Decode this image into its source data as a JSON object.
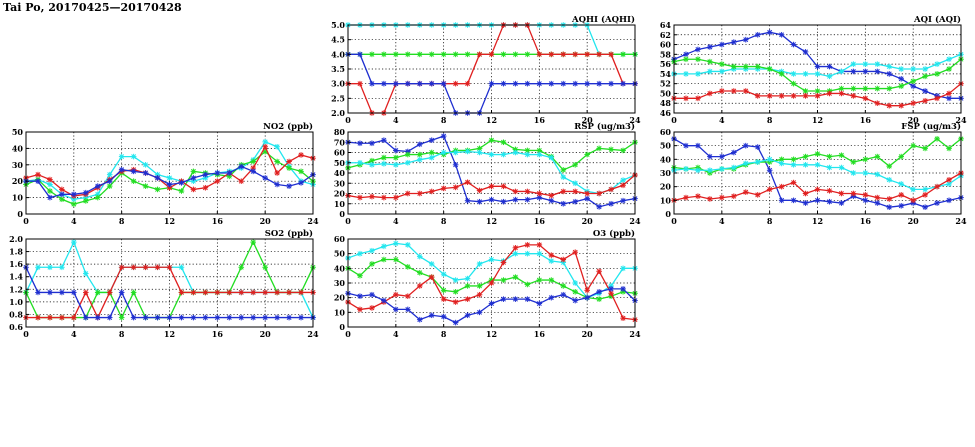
{
  "page": {
    "title": "Tai Po, 20170425—20170428"
  },
  "palette": {
    "blue": "#1f2fd0",
    "green": "#22dd22",
    "red": "#e02020",
    "cyan": "#22e6ee"
  },
  "chart_data": [
    {
      "id": "aqhi",
      "type": "line",
      "title": "AQHI (AQHI)",
      "x": [
        0,
        1,
        2,
        3,
        4,
        5,
        6,
        7,
        8,
        9,
        10,
        11,
        12,
        13,
        14,
        15,
        16,
        17,
        18,
        19,
        20,
        21,
        22,
        23,
        24
      ],
      "xticks": [
        0,
        4,
        8,
        12,
        16,
        20,
        24
      ],
      "ylim": [
        2.0,
        5.0
      ],
      "yticks": [
        "2.0",
        "2.5",
        "3.0",
        "3.5",
        "4.0",
        "4.5",
        "5.0"
      ],
      "series": [
        {
          "color": "cyan",
          "values": [
            5,
            5,
            5,
            5,
            5,
            5,
            5,
            5,
            5,
            5,
            5,
            5,
            5,
            5,
            5,
            5,
            5,
            5,
            5,
            5,
            5,
            4,
            4,
            4,
            4
          ]
        },
        {
          "color": "green",
          "values": [
            4,
            4,
            4,
            4,
            4,
            4,
            4,
            4,
            4,
            4,
            4,
            4,
            4,
            4,
            4,
            4,
            4,
            4,
            4,
            4,
            4,
            4,
            4,
            4,
            4
          ]
        },
        {
          "color": "red",
          "values": [
            3,
            3,
            2,
            2,
            3,
            3,
            3,
            3,
            3,
            3,
            3,
            4,
            4,
            5,
            5,
            5,
            4,
            4,
            4,
            4,
            4,
            4,
            4,
            3,
            3
          ]
        },
        {
          "color": "blue",
          "values": [
            4,
            4,
            3,
            3,
            3,
            3,
            3,
            3,
            3,
            2,
            2,
            2,
            3,
            3,
            3,
            3,
            3,
            3,
            3,
            3,
            3,
            3,
            3,
            3,
            3
          ]
        }
      ]
    },
    {
      "id": "aqi",
      "type": "line",
      "title": "AQI (AQI)",
      "x": [
        0,
        1,
        2,
        3,
        4,
        5,
        6,
        7,
        8,
        9,
        10,
        11,
        12,
        13,
        14,
        15,
        16,
        17,
        18,
        19,
        20,
        21,
        22,
        23,
        24
      ],
      "xticks": [
        0,
        4,
        8,
        12,
        16,
        20,
        24
      ],
      "ylim": [
        46,
        64
      ],
      "yticks": [
        "46",
        "48",
        "50",
        "52",
        "54",
        "56",
        "58",
        "60",
        "62",
        "64"
      ],
      "series": [
        {
          "color": "blue",
          "values": [
            57,
            58,
            59,
            59.5,
            60,
            60.5,
            61,
            62,
            62.5,
            62,
            60,
            58.5,
            55.5,
            55.5,
            54.5,
            54.5,
            54.5,
            54.5,
            54,
            53,
            51.5,
            50.5,
            49.5,
            49,
            49
          ]
        },
        {
          "color": "cyan",
          "values": [
            54,
            54,
            54,
            54.5,
            54.5,
            55,
            55,
            55,
            55,
            54.5,
            54,
            54,
            54,
            53.5,
            54.5,
            56,
            56,
            56,
            55.5,
            55,
            55,
            55,
            56,
            57,
            58
          ]
        },
        {
          "color": "green",
          "values": [
            56.5,
            57,
            57,
            56.5,
            56,
            55.5,
            55.5,
            55.5,
            55,
            54,
            52,
            50.5,
            50.5,
            50.5,
            51,
            51,
            51,
            51,
            51,
            51.5,
            52.5,
            53.5,
            54,
            55,
            57
          ]
        },
        {
          "color": "red",
          "values": [
            49,
            49,
            49,
            50,
            50.5,
            50.5,
            50.5,
            49.5,
            49.5,
            49.5,
            49.5,
            49.5,
            49.5,
            50,
            50,
            49.5,
            49,
            48,
            47.5,
            47.5,
            48,
            48.5,
            49,
            50,
            52
          ]
        }
      ]
    },
    {
      "id": "no2",
      "type": "line",
      "title": "NO2 (ppb)",
      "x": [
        0,
        1,
        2,
        3,
        4,
        5,
        6,
        7,
        8,
        9,
        10,
        11,
        12,
        13,
        14,
        15,
        16,
        17,
        18,
        19,
        20,
        21,
        22,
        23,
        24
      ],
      "xticks": [
        0,
        4,
        8,
        12,
        16,
        20,
        24
      ],
      "ylim": [
        0,
        50
      ],
      "yticks": [
        "0",
        "10",
        "20",
        "30",
        "40",
        "50"
      ],
      "series": [
        {
          "color": "cyan",
          "values": [
            20,
            21,
            18,
            12,
            9,
            10,
            12,
            24,
            35,
            35,
            30,
            24,
            22,
            20,
            20,
            22,
            25,
            26,
            28,
            33,
            44,
            41,
            29,
            20,
            18
          ]
        },
        {
          "color": "green",
          "values": [
            18,
            21,
            14,
            9,
            6,
            8,
            10,
            17,
            25,
            20,
            17,
            15,
            16,
            14,
            26,
            25,
            24,
            23,
            30,
            32,
            38,
            32,
            28,
            26,
            20
          ]
        },
        {
          "color": "red",
          "values": [
            22,
            24,
            21,
            15,
            11,
            12,
            16,
            21,
            26,
            27,
            25,
            22,
            16,
            20,
            15,
            16,
            20,
            25,
            20,
            28,
            41,
            25,
            32,
            36,
            34
          ]
        },
        {
          "color": "blue",
          "values": [
            20,
            20,
            10,
            12,
            12,
            13,
            17,
            20,
            27,
            26,
            25,
            22,
            18,
            19,
            22,
            24,
            25,
            25,
            29,
            26,
            22,
            18,
            17,
            19,
            24
          ]
        }
      ]
    },
    {
      "id": "rsp",
      "type": "line",
      "title": "RSP (ug/m3)",
      "x": [
        0,
        1,
        2,
        3,
        4,
        5,
        6,
        7,
        8,
        9,
        10,
        11,
        12,
        13,
        14,
        15,
        16,
        17,
        18,
        19,
        20,
        21,
        22,
        23,
        24
      ],
      "xticks": [
        0,
        4,
        8,
        12,
        16,
        20,
        24
      ],
      "ylim": [
        0,
        80
      ],
      "yticks": [
        "0",
        "10",
        "20",
        "30",
        "40",
        "50",
        "60",
        "70",
        "80"
      ],
      "series": [
        {
          "color": "blue",
          "values": [
            70,
            69,
            69,
            72,
            62,
            61,
            68,
            72,
            76,
            48,
            13,
            12,
            14,
            12,
            14,
            14,
            16,
            13,
            10,
            12,
            15,
            7,
            10,
            13,
            15
          ]
        },
        {
          "color": "green",
          "values": [
            45,
            48,
            52,
            55,
            55,
            58,
            58,
            60,
            58,
            62,
            62,
            64,
            72,
            70,
            63,
            62,
            62,
            56,
            43,
            48,
            58,
            64,
            63,
            62,
            70
          ]
        },
        {
          "color": "cyan",
          "values": [
            50,
            50,
            48,
            49,
            48,
            50,
            53,
            55,
            60,
            60,
            61,
            60,
            58,
            58,
            60,
            58,
            58,
            55,
            36,
            30,
            22,
            20,
            24,
            33,
            38
          ]
        },
        {
          "color": "red",
          "values": [
            18,
            16,
            17,
            16,
            16,
            20,
            20,
            22,
            25,
            26,
            31,
            23,
            27,
            27,
            22,
            22,
            20,
            18,
            22,
            22,
            20,
            20,
            24,
            28,
            38
          ]
        }
      ]
    },
    {
      "id": "fsp",
      "type": "line",
      "title": "FSP (ug/m3)",
      "x": [
        0,
        1,
        2,
        3,
        4,
        5,
        6,
        7,
        8,
        9,
        10,
        11,
        12,
        13,
        14,
        15,
        16,
        17,
        18,
        19,
        20,
        21,
        22,
        23,
        24
      ],
      "xticks": [
        0,
        4,
        8,
        12,
        16,
        20,
        24
      ],
      "ylim": [
        0,
        60
      ],
      "yticks": [
        "0",
        "10",
        "20",
        "30",
        "40",
        "50",
        "60"
      ],
      "series": [
        {
          "color": "blue",
          "values": [
            55,
            50,
            50,
            42,
            42,
            45,
            50,
            49,
            32,
            10,
            10,
            8,
            10,
            9,
            8,
            13,
            10,
            8,
            5,
            6,
            8,
            5,
            8,
            10,
            12
          ]
        },
        {
          "color": "green",
          "values": [
            34,
            33,
            34,
            30,
            33,
            33,
            36,
            38,
            38,
            40,
            40,
            42,
            44,
            42,
            43,
            38,
            40,
            42,
            35,
            42,
            50,
            48,
            55,
            48,
            55
          ]
        },
        {
          "color": "cyan",
          "values": [
            32,
            33,
            32,
            32,
            33,
            34,
            37,
            38,
            40,
            37,
            36,
            36,
            36,
            34,
            34,
            30,
            30,
            29,
            25,
            22,
            18,
            18,
            20,
            22,
            28
          ]
        },
        {
          "color": "red",
          "values": [
            10,
            12,
            13,
            11,
            12,
            13,
            16,
            14,
            18,
            20,
            23,
            15,
            18,
            17,
            15,
            15,
            14,
            12,
            11,
            14,
            10,
            14,
            20,
            25,
            30
          ]
        }
      ]
    },
    {
      "id": "so2",
      "type": "line",
      "title": "SO2 (ppb)",
      "x": [
        0,
        1,
        2,
        3,
        4,
        5,
        6,
        7,
        8,
        9,
        10,
        11,
        12,
        13,
        14,
        15,
        16,
        17,
        18,
        19,
        20,
        21,
        22,
        23,
        24
      ],
      "xticks": [
        0,
        4,
        8,
        12,
        16,
        20,
        24
      ],
      "ylim": [
        0.6,
        2.0
      ],
      "yticks": [
        "0.6",
        "0.8",
        "1.0",
        "1.2",
        "1.4",
        "1.6",
        "1.8",
        "2.0"
      ],
      "series": [
        {
          "color": "cyan",
          "values": [
            1.15,
            1.55,
            1.55,
            1.55,
            1.95,
            1.45,
            1.15,
            1.15,
            1.55,
            1.55,
            1.55,
            1.55,
            1.55,
            1.55,
            1.15,
            1.15,
            1.15,
            1.15,
            1.15,
            1.15,
            1.15,
            1.15,
            1.15,
            1.15,
            0.75
          ]
        },
        {
          "color": "green",
          "values": [
            1.15,
            0.75,
            0.75,
            0.75,
            0.75,
            0.75,
            1.15,
            1.15,
            0.75,
            1.15,
            0.75,
            0.75,
            0.75,
            1.15,
            1.15,
            1.15,
            1.15,
            1.15,
            1.55,
            1.95,
            1.55,
            1.15,
            1.15,
            1.15,
            1.55
          ]
        },
        {
          "color": "red",
          "values": [
            0.75,
            0.75,
            0.75,
            0.75,
            0.75,
            1.15,
            0.75,
            1.15,
            1.55,
            1.55,
            1.55,
            1.55,
            1.55,
            1.15,
            1.15,
            1.15,
            1.15,
            1.15,
            1.15,
            1.15,
            1.15,
            1.15,
            1.15,
            1.15,
            1.15
          ]
        },
        {
          "color": "blue",
          "values": [
            1.55,
            1.15,
            1.15,
            1.15,
            1.15,
            0.75,
            0.75,
            0.75,
            1.15,
            0.75,
            0.75,
            0.75,
            0.75,
            0.75,
            0.75,
            0.75,
            0.75,
            0.75,
            0.75,
            0.75,
            0.75,
            0.75,
            0.75,
            0.75,
            0.75
          ]
        }
      ]
    },
    {
      "id": "o3",
      "type": "line",
      "title": "O3 (ppb)",
      "x": [
        0,
        1,
        2,
        3,
        4,
        5,
        6,
        7,
        8,
        9,
        10,
        11,
        12,
        13,
        14,
        15,
        16,
        17,
        18,
        19,
        20,
        21,
        22,
        23,
        24
      ],
      "xticks": [
        0,
        4,
        8,
        12,
        16,
        20,
        24
      ],
      "ylim": [
        0,
        60
      ],
      "yticks": [
        "0",
        "10",
        "20",
        "30",
        "40",
        "50",
        "60"
      ],
      "series": [
        {
          "color": "cyan",
          "values": [
            47,
            50,
            52,
            55,
            57,
            56,
            48,
            43,
            36,
            32,
            33,
            43,
            46,
            45,
            50,
            50,
            50,
            45,
            44,
            30,
            20,
            23,
            28,
            40,
            40
          ]
        },
        {
          "color": "green",
          "values": [
            40,
            35,
            43,
            46,
            46,
            41,
            37,
            34,
            25,
            24,
            28,
            28,
            32,
            32,
            34,
            29,
            32,
            32,
            28,
            24,
            20,
            19,
            21,
            24,
            23
          ]
        },
        {
          "color": "red",
          "values": [
            17,
            12,
            13,
            17,
            22,
            21,
            28,
            34,
            19,
            17,
            19,
            22,
            30,
            44,
            54,
            56,
            56,
            49,
            46,
            51,
            25,
            38,
            23,
            6,
            5
          ]
        },
        {
          "color": "blue",
          "values": [
            23,
            21,
            22,
            18,
            12,
            12,
            5,
            8,
            7,
            3,
            8,
            10,
            16,
            19,
            19,
            19,
            16,
            20,
            22,
            18,
            20,
            24,
            26,
            26,
            18
          ]
        }
      ]
    }
  ]
}
